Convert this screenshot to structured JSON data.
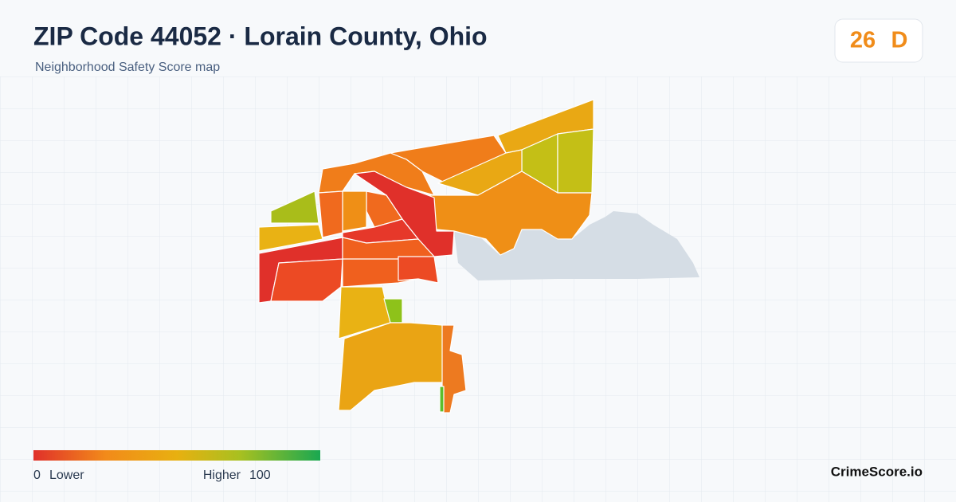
{
  "header": {
    "title": "ZIP Code 44052 · Lorain County, Ohio",
    "subtitle": "Neighborhood Safety Score map"
  },
  "score": {
    "value": 26,
    "grade": "D"
  },
  "legend": {
    "min": 0,
    "min_label": "Lower",
    "max_label": "Higher",
    "max": 100
  },
  "brand": "CrimeScore.io"
}
